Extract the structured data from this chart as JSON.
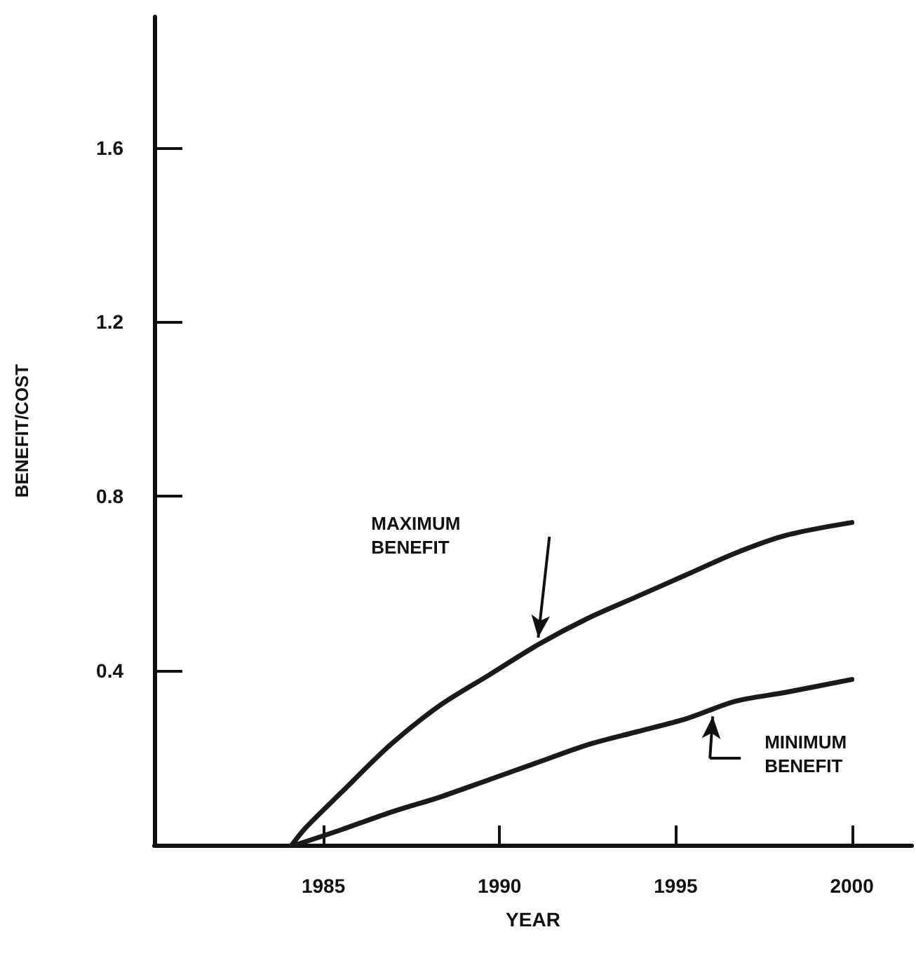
{
  "chart_data": {
    "type": "line",
    "xlabel": "YEAR",
    "ylabel": "BENEFIT/COST",
    "xlim": [
      1980.2,
      2001.7
    ],
    "ylim": [
      0,
      1.9
    ],
    "xticks": [
      1985,
      1990,
      1995,
      2000
    ],
    "yticks": [
      0.4,
      0.8,
      1.2,
      1.6
    ],
    "grid": false,
    "marker": "none",
    "line_style": "solid",
    "series": [
      {
        "color": "#1a1a1a",
        "x": [
          1984.1,
          1984.5,
          1985.5,
          1986.9,
          1988.3,
          1989.7,
          1991.1,
          1992.5,
          1993.9,
          1995.3,
          1996.7,
          1998.1,
          2000
        ],
        "values": [
          0,
          0.04,
          0.12,
          0.23,
          0.32,
          0.39,
          0.46,
          0.52,
          0.57,
          0.62,
          0.67,
          0.71,
          0.74
        ]
      },
      {
        "color": "#1a1a1a",
        "x": [
          1984.2,
          1985.5,
          1986.9,
          1988.3,
          1989.7,
          1991.1,
          1992.5,
          1993.9,
          1995.3,
          1996.7,
          1998.1,
          2000
        ],
        "values": [
          0,
          0.035,
          0.075,
          0.11,
          0.15,
          0.19,
          0.23,
          0.26,
          0.29,
          0.33,
          0.35,
          0.38
        ]
      }
    ],
    "annotations": [
      "MAXIMUM\nBENEFIT",
      "MINIMUM\nBENEFIT"
    ]
  }
}
